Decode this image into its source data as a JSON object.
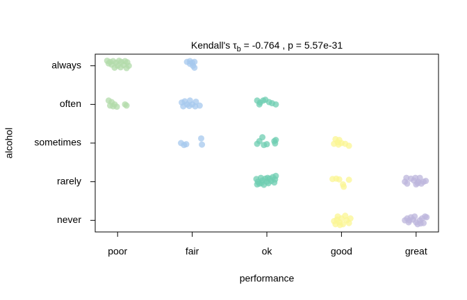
{
  "chart_data": {
    "type": "scatter",
    "title": {
      "prefix": "Kendall's τ",
      "subscript": "b",
      "suffix": " = -0.764 , p = 5.57e-31"
    },
    "xlabel": "performance",
    "ylabel": "alcohol",
    "xlim": [
      0.7,
      5.3
    ],
    "ylim": [
      0.7,
      5.3
    ],
    "xticks": [
      {
        "value": 1,
        "label": "poor"
      },
      {
        "value": 2,
        "label": "fair"
      },
      {
        "value": 3,
        "label": "ok"
      },
      {
        "value": 4,
        "label": "good"
      },
      {
        "value": 5,
        "label": "great"
      }
    ],
    "yticks": [
      {
        "value": 1,
        "label": "never"
      },
      {
        "value": 2,
        "label": "rarely"
      },
      {
        "value": 3,
        "label": "sometimes"
      },
      {
        "value": 4,
        "label": "often"
      },
      {
        "value": 5,
        "label": "always"
      }
    ],
    "series": [
      {
        "color": "#b2dba9",
        "x": [
          0.86,
          0.9,
          0.94,
          0.98,
          1.02,
          1.05,
          1.1,
          1.13,
          0.92,
          1.0,
          1.04,
          1.08,
          1.12,
          1.15,
          0.96,
          0.88,
          0.88,
          0.92,
          0.9,
          0.96,
          0.99,
          1.1,
          1.12,
          0.94
        ],
        "y": [
          5.13,
          5.1,
          5.12,
          5.08,
          5.13,
          5.1,
          5.12,
          5.09,
          5.03,
          5.0,
          4.96,
          5.02,
          4.94,
          5.0,
          4.95,
          5.06,
          4.1,
          4.06,
          3.97,
          4.0,
          3.94,
          4.0,
          3.97,
          3.95
        ]
      },
      {
        "color": "#a6c8ee",
        "x": [
          1.93,
          1.97,
          2.0,
          2.03,
          2.01,
          2.03,
          1.97,
          1.86,
          1.9,
          1.93,
          1.88,
          1.96,
          2.0,
          2.05,
          2.04,
          2.1,
          1.97,
          1.85,
          1.89,
          1.92,
          2.12,
          2.13
        ],
        "y": [
          5.1,
          5.12,
          5.08,
          5.1,
          5.0,
          4.95,
          5.05,
          4.05,
          4.08,
          4.0,
          3.95,
          3.96,
          4.0,
          4.07,
          3.95,
          3.97,
          4.1,
          3.0,
          2.95,
          2.97,
          3.12,
          2.96
        ]
      },
      {
        "color": "#6fcdb2",
        "x": [
          2.87,
          2.91,
          2.95,
          2.98,
          3.03,
          3.07,
          3.12,
          2.9,
          2.9,
          2.94,
          2.87,
          2.96,
          3.0,
          3.1,
          3.12,
          3.11,
          2.86,
          2.88,
          2.9,
          2.92,
          2.94,
          2.96,
          2.98,
          3.0,
          3.02,
          3.04,
          3.06,
          3.08,
          3.1,
          3.11,
          3.12,
          2.93,
          3.01,
          2.87
        ],
        "y": [
          4.1,
          4.05,
          4.1,
          4.12,
          4.06,
          4.03,
          4.0,
          4.0,
          3.05,
          3.15,
          2.98,
          2.95,
          2.97,
          3.05,
          3.08,
          2.99,
          2.07,
          2.0,
          1.95,
          2.1,
          2.03,
          1.92,
          2.08,
          2.0,
          1.96,
          2.08,
          2.02,
          2.12,
          1.98,
          2.06,
          2.15,
          1.97,
          2.1,
          1.93
        ]
      },
      {
        "color": "#fbf593",
        "x": [
          3.92,
          3.95,
          3.97,
          3.9,
          3.96,
          4.0,
          4.05,
          4.1,
          3.88,
          3.93,
          3.97,
          4.02,
          4.03,
          4.1,
          3.9,
          3.92,
          3.95,
          3.97,
          4.0,
          4.02,
          4.05,
          4.07,
          4.1,
          3.94,
          4.12,
          3.98
        ],
        "y": [
          3.1,
          3.02,
          3.08,
          2.98,
          2.96,
          3.0,
          2.98,
          2.93,
          2.07,
          2.08,
          2.06,
          1.93,
          1.87,
          2.05,
          0.98,
          0.9,
          1.1,
          0.95,
          1.05,
          0.9,
          1.12,
          1.0,
          0.93,
          1.02,
          1.05,
          0.88
        ]
      },
      {
        "color": "#bcb6dc",
        "x": [
          4.87,
          4.85,
          4.88,
          4.93,
          4.97,
          5.0,
          5.03,
          5.07,
          5.1,
          5.13,
          5.05,
          4.99,
          5.02,
          4.85,
          4.88,
          4.9,
          4.93,
          4.96,
          5.0,
          5.02,
          5.05,
          5.08,
          5.1,
          5.12,
          5.14,
          4.98,
          5.06,
          4.91
        ],
        "y": [
          2.1,
          2.0,
          1.95,
          2.08,
          2.03,
          1.93,
          2.0,
          1.95,
          2.0,
          2.02,
          2.1,
          2.1,
          1.96,
          1.0,
          1.05,
          0.95,
          1.08,
          1.02,
          0.95,
          0.9,
          1.0,
          1.05,
          0.93,
          1.1,
          1.08,
          1.1,
          0.92,
          1.0
        ]
      }
    ]
  }
}
